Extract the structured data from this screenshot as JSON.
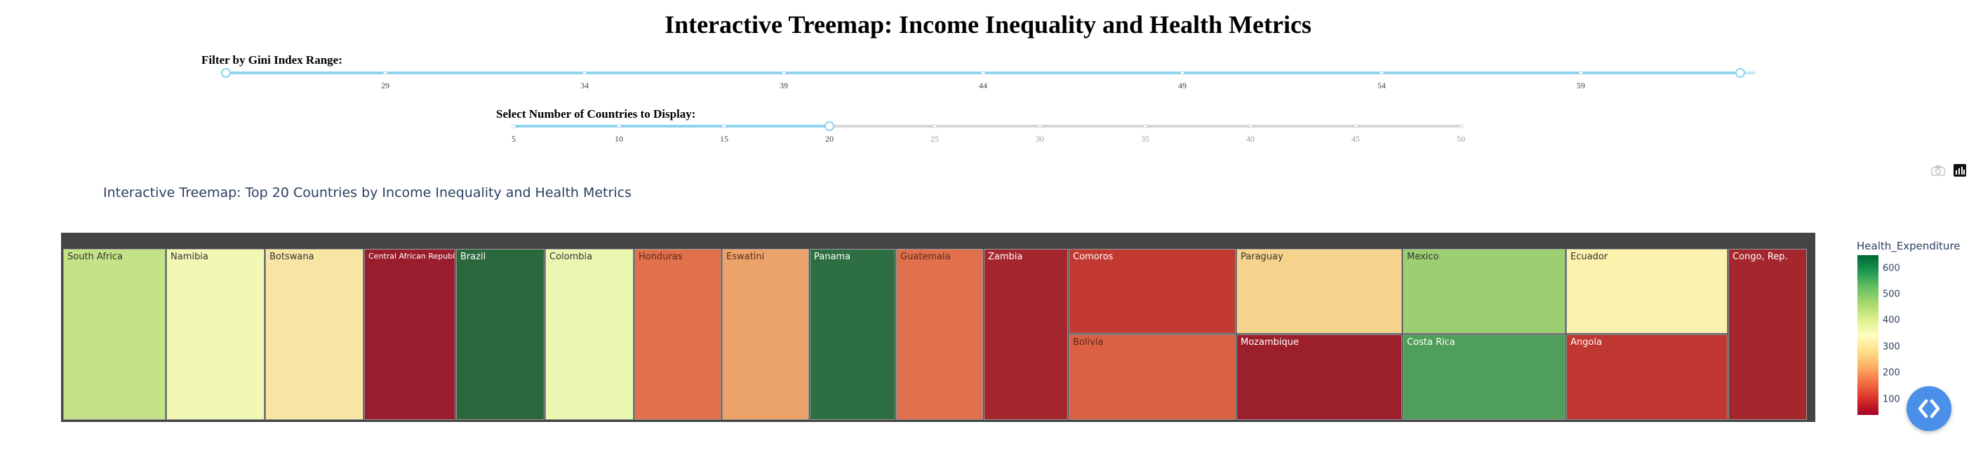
{
  "page": {
    "title": "Interactive Treemap: Income Inequality and Health Metrics"
  },
  "gini_slider": {
    "label": "Filter by Gini Index Range:",
    "ticks": [
      "29",
      "34",
      "39",
      "44",
      "49",
      "54",
      "59"
    ],
    "min": 25,
    "max": 63,
    "range": [
      25,
      62.5
    ],
    "tick_values": [
      29,
      34,
      39,
      44,
      49,
      54,
      59
    ]
  },
  "count_slider": {
    "label": "Select Number of Countries to Display:",
    "ticks": [
      "5",
      "10",
      "15",
      "20",
      "25",
      "30",
      "35",
      "40",
      "45",
      "50"
    ],
    "tick_values": [
      5,
      10,
      15,
      20,
      25,
      30,
      35,
      40,
      45,
      50
    ],
    "value": 20
  },
  "toolbar": {
    "icons": [
      "camera-icon",
      "plotly-logo-icon"
    ]
  },
  "chart_data": {
    "type": "treemap",
    "title": "Interactive Treemap: Top 20 Countries by Income Inequality and Health Metrics",
    "colorbar": {
      "title": "Health_Expenditure",
      "ticks": [
        "100",
        "200",
        "300",
        "400",
        "500",
        "600"
      ],
      "tick_values": [
        100,
        200,
        300,
        400,
        500,
        600
      ],
      "range": [
        40,
        650
      ],
      "colorscale": [
        "#a50026",
        "#d73027",
        "#f46d43",
        "#fdae61",
        "#fee08b",
        "#ffffbf",
        "#d9ef8b",
        "#a6d96a",
        "#66bd63",
        "#1a9850",
        "#006837"
      ]
    },
    "tiles": [
      {
        "label": "South Africa",
        "color": "#c4e287",
        "text_color": "#333333"
      },
      {
        "label": "Namibia",
        "color": "#f1f8b3",
        "text_color": "#333333"
      },
      {
        "label": "Botswana",
        "color": "#f8e5a4",
        "text_color": "#333333"
      },
      {
        "label": "Central African Republic",
        "color": "#991d2c",
        "text_color": "#ffffff"
      },
      {
        "label": "Brazil",
        "color": "#2b683e",
        "text_color": "#ffffff"
      },
      {
        "label": "Colombia",
        "color": "#eaf7b1",
        "text_color": "#333333"
      },
      {
        "label": "Honduras",
        "color": "#e1704d",
        "text_color": "#5a2a1a"
      },
      {
        "label": "Eswatini",
        "color": "#eca36a",
        "text_color": "#5a2a1a"
      },
      {
        "label": "Panama",
        "color": "#2d6f42",
        "text_color": "#ffffff"
      },
      {
        "label": "Guatemala",
        "color": "#e1704d",
        "text_color": "#5a2a1a"
      },
      {
        "label": "Zambia",
        "color": "#a5272d",
        "text_color": "#ffffff"
      },
      {
        "label": "Comoros",
        "color": "#c13930",
        "text_color": "#ffffff"
      },
      {
        "label": "Bolivia",
        "color": "#db6144",
        "text_color": "#5a2a1a"
      },
      {
        "label": "Paraguay",
        "color": "#f6d48e",
        "text_color": "#333333"
      },
      {
        "label": "Mozambique",
        "color": "#9c202c",
        "text_color": "#ffffff"
      },
      {
        "label": "Mexico",
        "color": "#9ece72",
        "text_color": "#333333"
      },
      {
        "label": "Costa Rica",
        "color": "#4f9f5a",
        "text_color": "#ffffff"
      },
      {
        "label": "Ecuador",
        "color": "#fcf1ad",
        "text_color": "#333333"
      },
      {
        "label": "Angola",
        "color": "#bf3730",
        "text_color": "#ffffff"
      },
      {
        "label": "Congo, Rep.",
        "color": "#a5272d",
        "text_color": "#ffffff"
      }
    ]
  }
}
